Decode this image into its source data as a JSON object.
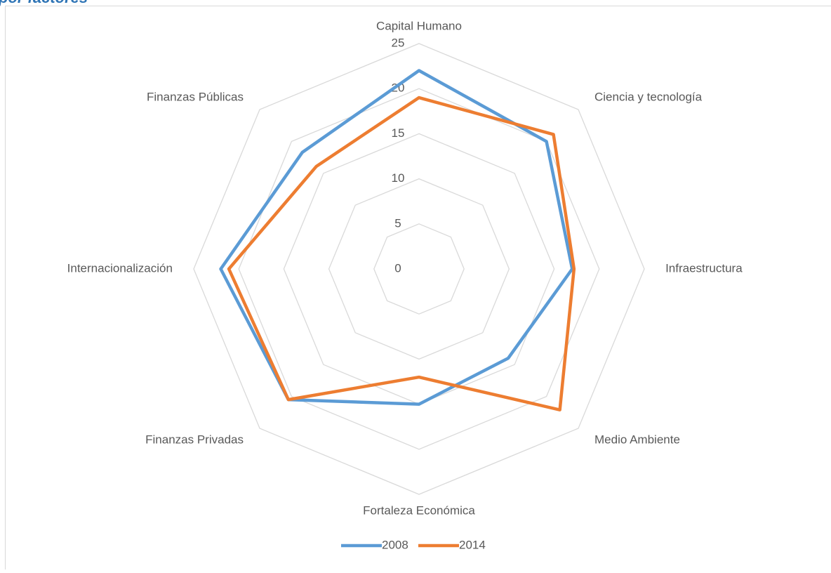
{
  "chart_data": {
    "type": "radar",
    "title": "por factores",
    "categories": [
      "Capital Humano",
      "Ciencia y tecnología",
      "Infraestructura",
      "Medio Ambiente",
      "Fortaleza Económica",
      "Finanzas Privadas",
      "Internacionalización",
      "Finanzas Públicas"
    ],
    "series": [
      {
        "name": "2008",
        "color": "#5b9bd5",
        "values": [
          22,
          20,
          17,
          14,
          15,
          20.5,
          22,
          18.3
        ]
      },
      {
        "name": "2014",
        "color": "#ed7d31",
        "values": [
          19,
          21.1,
          17.2,
          22.1,
          12,
          20.5,
          21.1,
          16.1
        ]
      }
    ],
    "ylim": [
      0,
      25
    ],
    "yticks": [
      0,
      5,
      10,
      15,
      20,
      25
    ],
    "grid": true,
    "legend": "bottom"
  }
}
